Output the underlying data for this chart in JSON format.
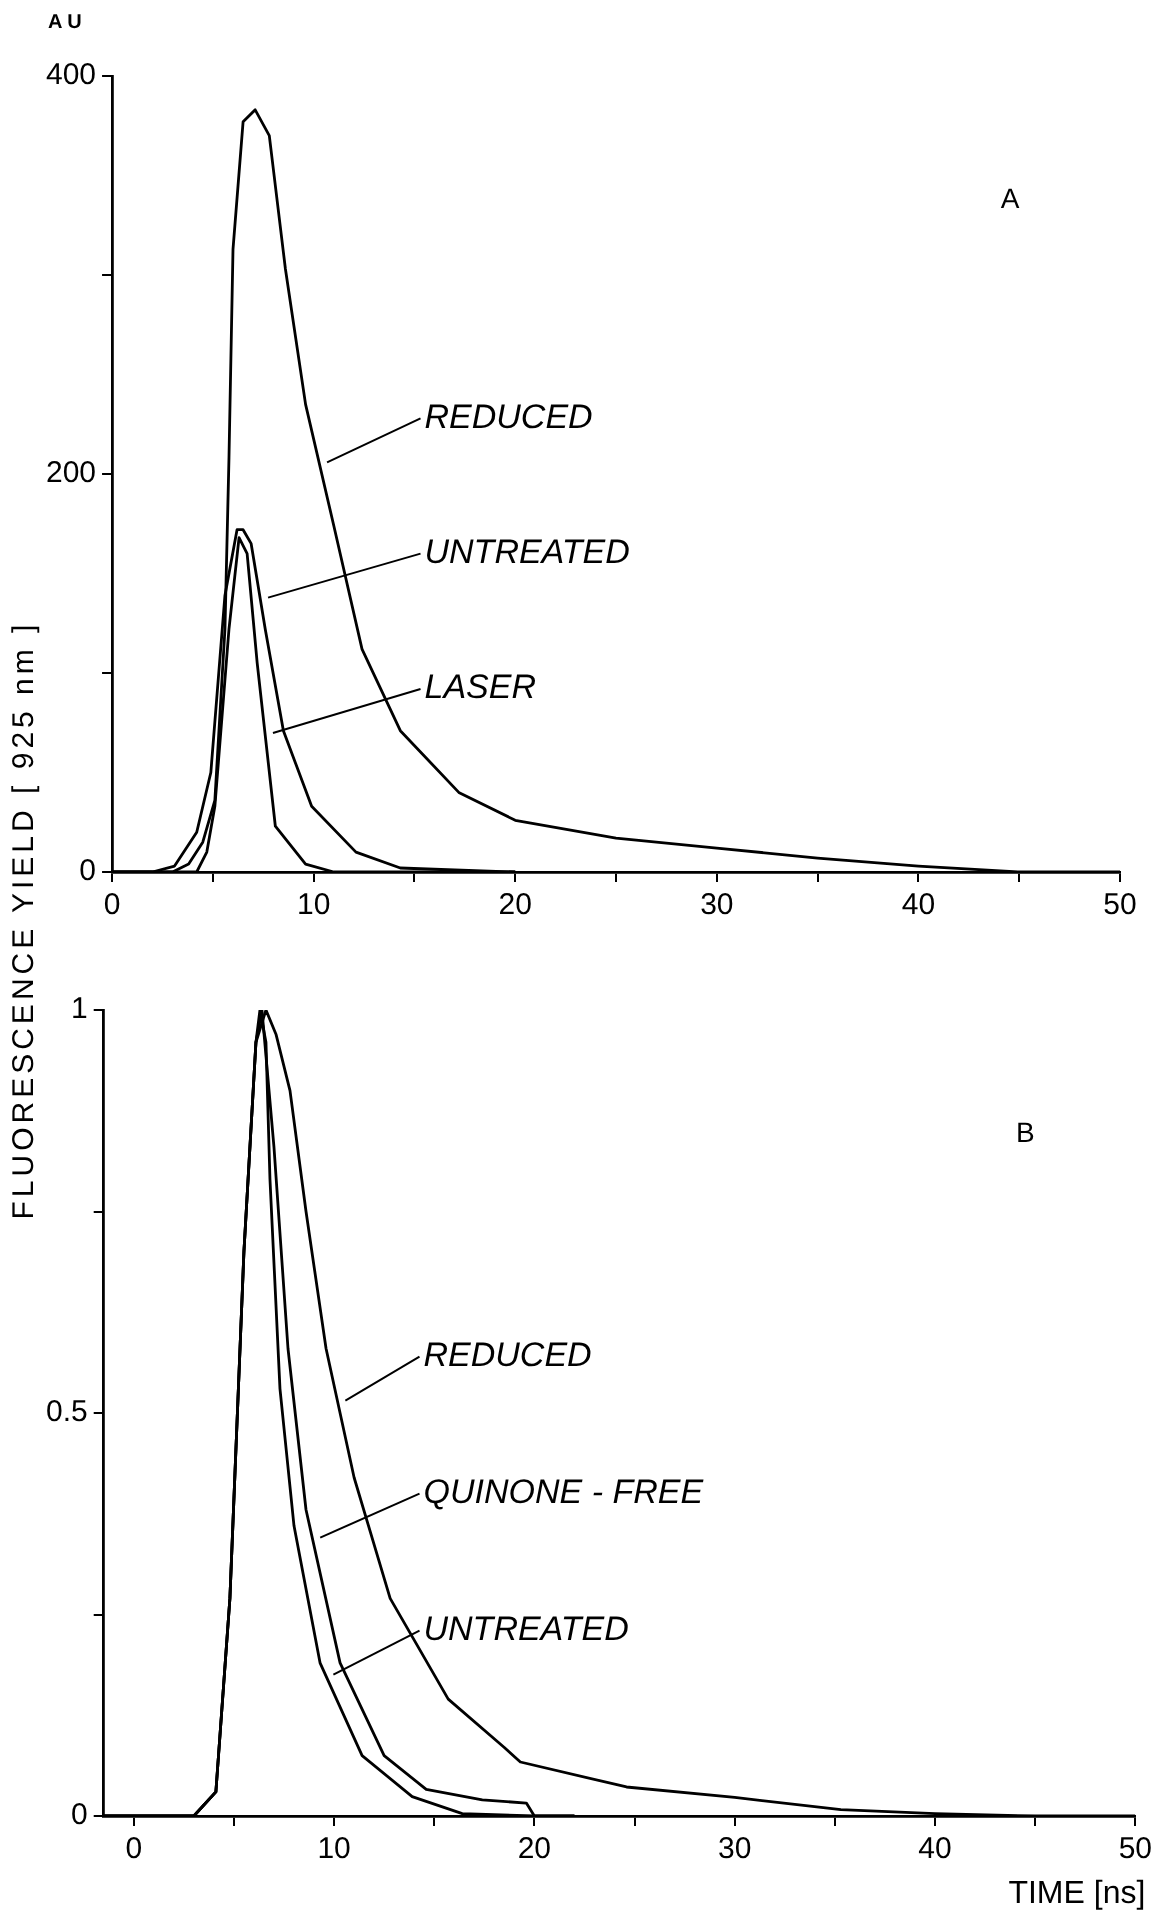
{
  "chart_data": [
    {
      "type": "line",
      "ylabel": "FLUORESCENCE YIELD [ 925 nm ]",
      "annotations": [
        "A U",
        "A"
      ],
      "legend": "center",
      "xlim": [
        0,
        50
      ],
      "xticks": [
        0,
        {
          "value": 5,
          "label": null
        },
        10,
        {
          "value": 15,
          "label": null
        },
        20,
        {
          "value": 25,
          "label": null
        },
        30,
        {
          "value": 35,
          "label": null
        },
        40,
        {
          "value": 45,
          "label": null
        },
        50
      ],
      "ylim": [
        0,
        400
      ],
      "yticks": [
        0,
        {
          "value": 100,
          "label": null
        },
        200,
        {
          "value": 300,
          "label": null
        },
        400
      ],
      "series": [
        {
          "name": "REDUCED",
          "color": "#000000",
          "x": [
            0,
            2,
            3,
            3.8,
            4.5,
            5.1,
            5.6,
            5.8,
            6.0,
            6.5,
            7.1,
            7.8,
            8.6,
            9.6,
            11.0,
            12.4,
            14.3,
            17.2,
            20,
            25,
            30,
            35,
            40,
            45,
            50
          ],
          "values": [
            0,
            0,
            0,
            4,
            15,
            36,
            122,
            208,
            313,
            377,
            383,
            370,
            303,
            235,
            174,
            112,
            71,
            40,
            26,
            17,
            12,
            7,
            3,
            0,
            0
          ]
        },
        {
          "name": "UNTREATED",
          "color": "#000000",
          "x": [
            0,
            2,
            3.1,
            4.2,
            4.9,
            5.6,
            6.2,
            6.5,
            6.9,
            7.6,
            8.5,
            9.9,
            12.1,
            14.3,
            17,
            20
          ],
          "values": [
            0,
            0,
            3,
            20,
            50,
            139,
            172,
            172,
            165,
            122,
            71,
            33,
            10,
            2,
            1,
            0
          ]
        },
        {
          "name": "LASER",
          "color": "#000000",
          "x": [
            0,
            3,
            4.2,
            4.7,
            5.1,
            5.8,
            6.3,
            6.7,
            7.2,
            8.1,
            9.6,
            11,
            15,
            20
          ],
          "values": [
            0,
            0,
            0,
            10,
            33,
            122,
            168,
            160,
            105,
            23,
            4,
            0,
            0,
            0
          ]
        }
      ]
    },
    {
      "type": "line",
      "xlabel": "TIME [ns]",
      "annotations": [
        "B"
      ],
      "legend": "center",
      "xlim": [
        -1.5,
        50
      ],
      "xticks": [
        0,
        {
          "value": 5,
          "label": null
        },
        10,
        {
          "value": 15,
          "label": null
        },
        20,
        {
          "value": 25,
          "label": null
        },
        30,
        {
          "value": 35,
          "label": null
        },
        40,
        {
          "value": 45,
          "label": null
        },
        50
      ],
      "ylim": [
        0,
        1
      ],
      "yticks": [
        0,
        {
          "value": 0.25,
          "label": null
        },
        0.5,
        {
          "value": 0.75,
          "label": null
        },
        1
      ],
      "series": [
        {
          "name": "REDUCED",
          "color": "#000000",
          "x": [
            -1.5,
            2,
            3.0,
            4.1,
            4.8,
            5.5,
            6.1,
            6.6,
            7.1,
            7.8,
            8.6,
            9.6,
            11.0,
            12.8,
            15.7,
            18.5,
            19.3,
            24.6,
            30,
            35.3,
            40,
            45,
            50
          ],
          "values": [
            0,
            0,
            0,
            0.03,
            0.27,
            0.7,
            0.96,
            1.0,
            0.97,
            0.9,
            0.75,
            0.58,
            0.42,
            0.27,
            0.145,
            0.085,
            0.067,
            0.036,
            0.023,
            0.008,
            0.003,
            0,
            0
          ]
        },
        {
          "name": "QUINONE - FREE",
          "color": "#000000",
          "x": [
            -1.5,
            2,
            3.0,
            4.1,
            4.8,
            5.5,
            6.1,
            6.4,
            7.0,
            7.7,
            8.6,
            10.3,
            12.5,
            14.6,
            17.4,
            19.6,
            20,
            22
          ],
          "values": [
            0,
            0,
            0,
            0.03,
            0.27,
            0.7,
            0.96,
            1.0,
            0.83,
            0.58,
            0.38,
            0.19,
            0.075,
            0.033,
            0.02,
            0.016,
            0,
            0
          ]
        },
        {
          "name": "UNTREATED",
          "color": "#000000",
          "x": [
            -1.5,
            2,
            3.0,
            4.1,
            4.8,
            5.5,
            6.1,
            6.3,
            6.6,
            6.8,
            7.3,
            8.0,
            9.3,
            11.4,
            13.9,
            16.4,
            20,
            22
          ],
          "values": [
            0,
            0,
            0,
            0.03,
            0.27,
            0.7,
            0.96,
            1.0,
            0.96,
            0.79,
            0.53,
            0.36,
            0.19,
            0.075,
            0.024,
            0.003,
            0,
            0
          ]
        }
      ]
    }
  ]
}
